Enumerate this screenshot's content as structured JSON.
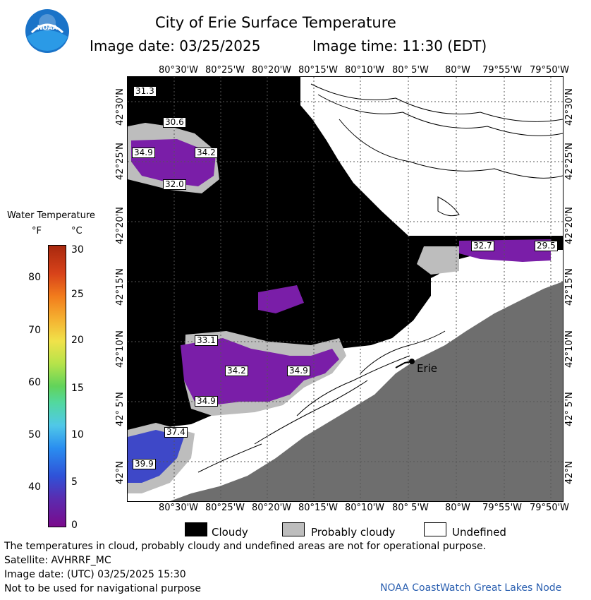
{
  "header": {
    "title": "City of Erie Surface Temperature",
    "date_line": "Image date: 03/25/2025",
    "time_line": "Image time: 11:30 (EDT)"
  },
  "map": {
    "lon_ticks": [
      "80°30'W",
      "80°25'W",
      "80°20'W",
      "80°15'W",
      "80°10'W",
      "80° 5'W",
      "80°W",
      "79°55'W",
      "79°50'W"
    ],
    "lat_ticks": [
      "42°30'N",
      "42°25'N",
      "42°20'N",
      "42°15'N",
      "42°10'N",
      "42° 5'N",
      "42°N"
    ],
    "city_label": "Erie",
    "temps": [
      "31.3",
      "30.6",
      "34.9",
      "34.2",
      "32.0",
      "32.7",
      "29.5",
      "33.1",
      "34.2",
      "34.9",
      "34.9",
      "37.4",
      "39.9"
    ],
    "colors": {
      "cloudy": "#000000",
      "probably_cloudy": "#bdbdbd",
      "land": "#6e6e6e",
      "undefined": "#ffffff",
      "water_purple": "#7a1ea8",
      "water_blue": "#3e48c8"
    }
  },
  "legend": {
    "title": "Water Temperature",
    "unit_f": "°F",
    "unit_c": "°C",
    "f_ticks": [
      "80",
      "70",
      "60",
      "50",
      "40"
    ],
    "c_ticks": [
      "30",
      "25",
      "20",
      "15",
      "10",
      "5",
      "0"
    ]
  },
  "key": {
    "cloudy": "Cloudy",
    "probably_cloudy": "Probably cloudy",
    "undefined": "Undefined"
  },
  "footer": {
    "line1": "The temperatures in cloud, probably cloudy and undefined areas are not for operational purpose.",
    "line2": "Satellite: AVHRRF_MC",
    "line3": "Image date: (UTC) 03/25/2025  15:30",
    "line4": "Not to be used for navigational purpose",
    "credit": "NOAA CoastWatch Great Lakes Node"
  }
}
